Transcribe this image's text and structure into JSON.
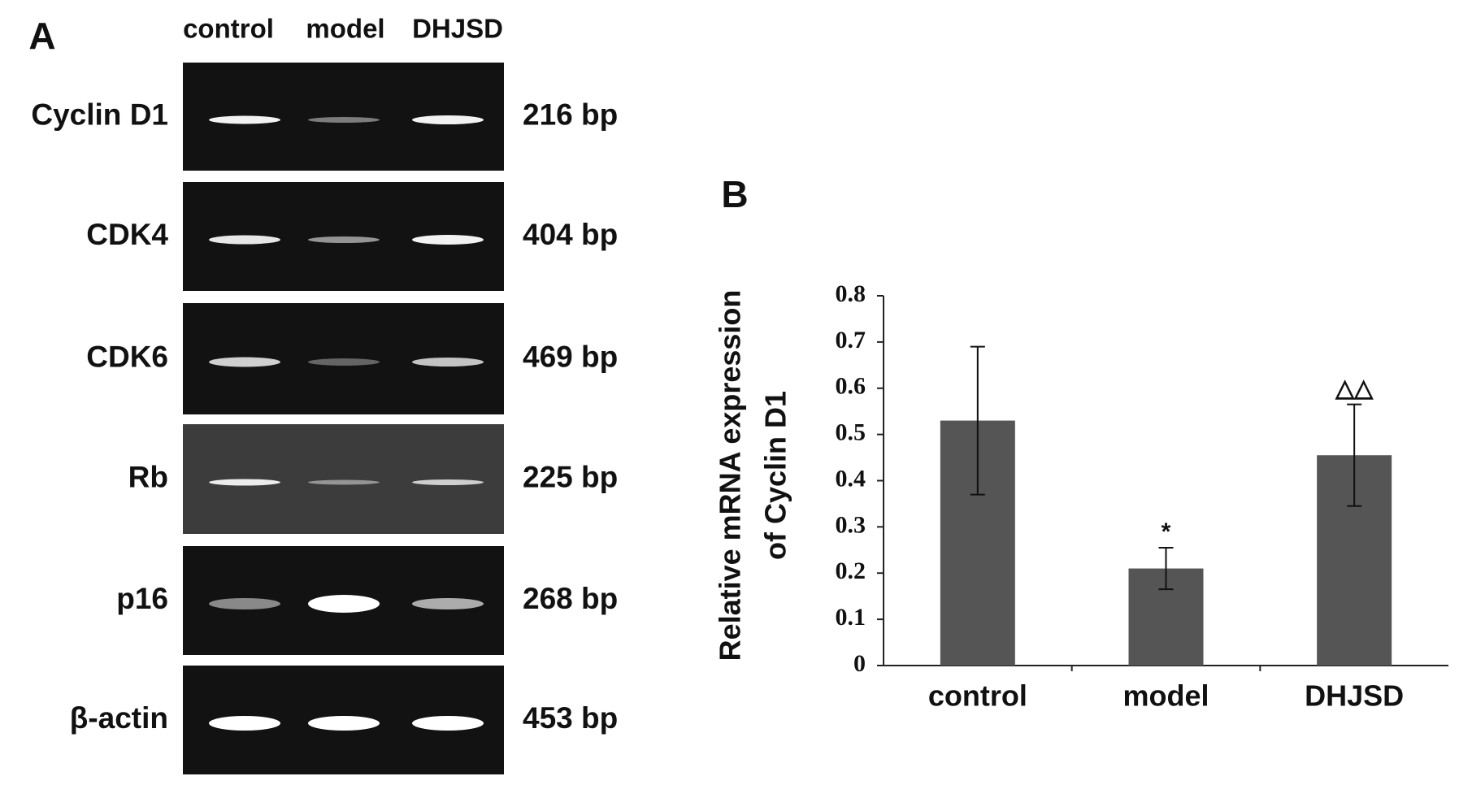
{
  "panel_a": {
    "label": "A",
    "lanes": [
      "control",
      "model",
      "DHJSD"
    ],
    "rows": [
      {
        "gene": "Cyclin D1",
        "size": "216 bp"
      },
      {
        "gene": "CDK4",
        "size": "404 bp"
      },
      {
        "gene": "CDK6",
        "size": "469 bp"
      },
      {
        "gene": "Rb",
        "size": "225 bp"
      },
      {
        "gene": "p16",
        "size": "268 bp"
      },
      {
        "gene": "β-actin",
        "size": "453 bp"
      }
    ]
  },
  "chart_data": {
    "type": "bar",
    "label": "B",
    "y_label": [
      "Relative mRNA expression",
      "of Cyclin D1"
    ],
    "categories": [
      "control",
      "model",
      "DHJSD"
    ],
    "values": [
      0.53,
      0.21,
      0.455
    ],
    "errors": [
      0.16,
      0.045,
      0.11
    ],
    "value_annotations": [
      null,
      "*",
      "△△"
    ],
    "color": "#555555",
    "ylim": [
      0,
      0.8
    ],
    "yticks": [
      0,
      0.1,
      0.2,
      0.3,
      0.4,
      0.5,
      0.6,
      0.7,
      0.8
    ],
    "grid": false
  }
}
